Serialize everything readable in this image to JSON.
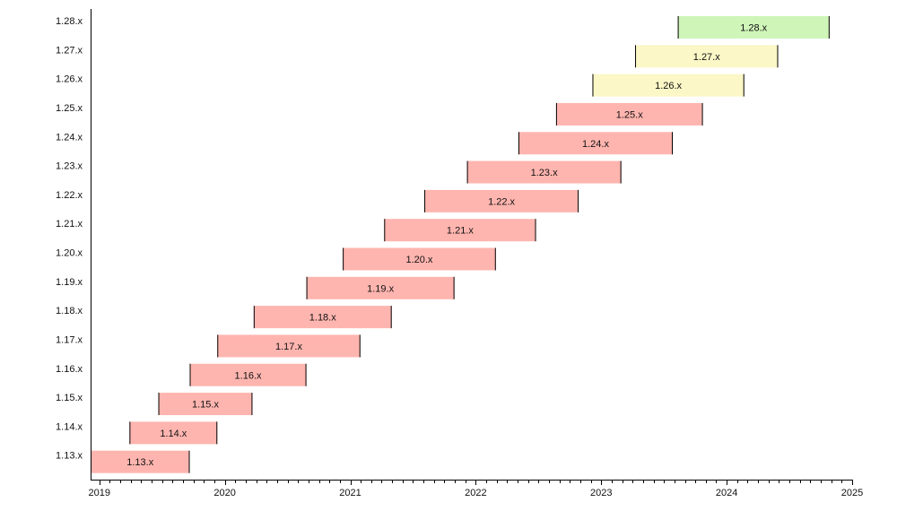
{
  "chart_data": {
    "type": "gantt",
    "title": "",
    "xlabel": "",
    "ylabel": "",
    "xlim": [
      2018.93,
      2025.0
    ],
    "x_ticks": [
      "2019",
      "2020",
      "2021",
      "2022",
      "2023",
      "2024",
      "2025"
    ],
    "colors": {
      "eol": "#ffb5af",
      "maintenance": "#fbf7c6",
      "active": "#cff5b9"
    },
    "series": [
      {
        "name": "1.13.x",
        "start": 2018.93,
        "end": 2019.72,
        "status": "eol"
      },
      {
        "name": "1.14.x",
        "start": 2019.24,
        "end": 2019.94,
        "status": "eol"
      },
      {
        "name": "1.15.x",
        "start": 2019.47,
        "end": 2020.22,
        "status": "eol"
      },
      {
        "name": "1.16.x",
        "start": 2019.72,
        "end": 2020.65,
        "status": "eol"
      },
      {
        "name": "1.17.x",
        "start": 2019.94,
        "end": 2021.08,
        "status": "eol"
      },
      {
        "name": "1.18.x",
        "start": 2020.23,
        "end": 2021.33,
        "status": "eol"
      },
      {
        "name": "1.19.x",
        "start": 2020.65,
        "end": 2021.83,
        "status": "eol"
      },
      {
        "name": "1.20.x",
        "start": 2020.94,
        "end": 2022.16,
        "status": "eol"
      },
      {
        "name": "1.21.x",
        "start": 2021.27,
        "end": 2022.48,
        "status": "eol"
      },
      {
        "name": "1.22.x",
        "start": 2021.59,
        "end": 2022.82,
        "status": "eol"
      },
      {
        "name": "1.23.x",
        "start": 2021.93,
        "end": 2023.16,
        "status": "eol"
      },
      {
        "name": "1.24.x",
        "start": 2022.34,
        "end": 2023.57,
        "status": "eol"
      },
      {
        "name": "1.25.x",
        "start": 2022.64,
        "end": 2023.81,
        "status": "eol"
      },
      {
        "name": "1.26.x",
        "start": 2022.93,
        "end": 2024.14,
        "status": "maintenance"
      },
      {
        "name": "1.27.x",
        "start": 2023.27,
        "end": 2024.41,
        "status": "maintenance"
      },
      {
        "name": "1.28.x",
        "start": 2023.61,
        "end": 2024.82,
        "status": "active"
      }
    ]
  }
}
